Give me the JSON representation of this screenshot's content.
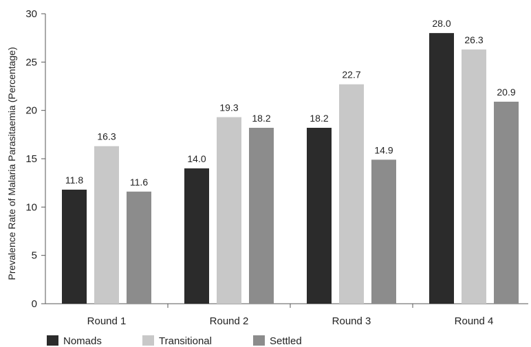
{
  "chart_data": {
    "type": "bar",
    "categories": [
      "Round 1",
      "Round 2",
      "Round 3",
      "Round 4"
    ],
    "series": [
      {
        "name": "Nomads",
        "values": [
          11.8,
          14.0,
          18.2,
          28.0
        ],
        "labels": [
          "11.8",
          "14.0",
          "18.2",
          "28.0"
        ],
        "color": "#2b2b2b"
      },
      {
        "name": "Transitional",
        "values": [
          16.3,
          19.3,
          22.7,
          26.3
        ],
        "labels": [
          "16.3",
          "19.3",
          "22.7",
          "26.3"
        ],
        "color": "#c8c8c8"
      },
      {
        "name": "Settled",
        "values": [
          11.6,
          18.2,
          14.9,
          20.9
        ],
        "labels": [
          "11.6",
          "18.2",
          "14.9",
          "20.9"
        ],
        "color": "#8c8c8c"
      }
    ],
    "ylabel": "Prevalence Rate of Malaria Parasitaemia (Percentage)",
    "xlabel": "",
    "ylim": [
      0,
      30
    ],
    "yticks": [
      "0",
      "5",
      "10",
      "15",
      "20",
      "25",
      "30"
    ],
    "grid": false,
    "legend_position": "bottom-left"
  }
}
